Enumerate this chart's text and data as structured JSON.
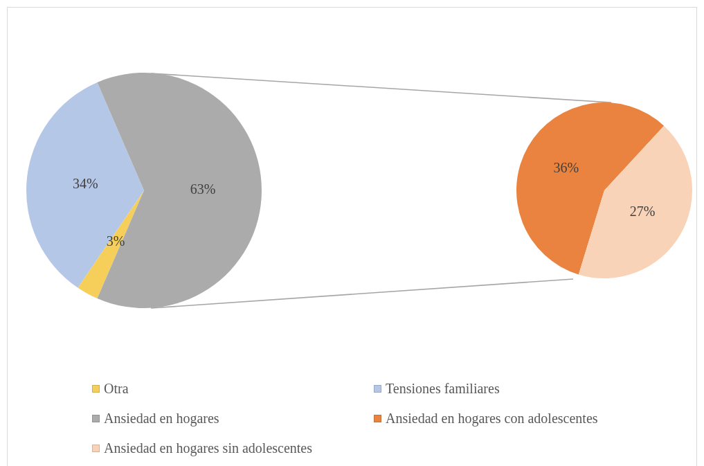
{
  "chart_data": [
    {
      "type": "pie",
      "categories": [
        "Otra",
        "Tensiones familiares",
        "Ansiedad en hogares"
      ],
      "values": [
        3,
        34,
        63
      ],
      "colors": [
        "#f6cf5a",
        "#b4c7e7",
        "#ababab"
      ],
      "value_labels": [
        "3%",
        "34%",
        "63%"
      ],
      "legend": "bottom"
    },
    {
      "type": "pie",
      "categories": [
        "Ansiedad en hogares con adolescentes",
        "Ansiedad en hogares sin adolescentes"
      ],
      "values": [
        36,
        27
      ],
      "colors": [
        "#e9833f",
        "#f8d3b8"
      ],
      "value_labels": [
        "36%",
        "27%"
      ],
      "legend": "bottom"
    }
  ]
}
